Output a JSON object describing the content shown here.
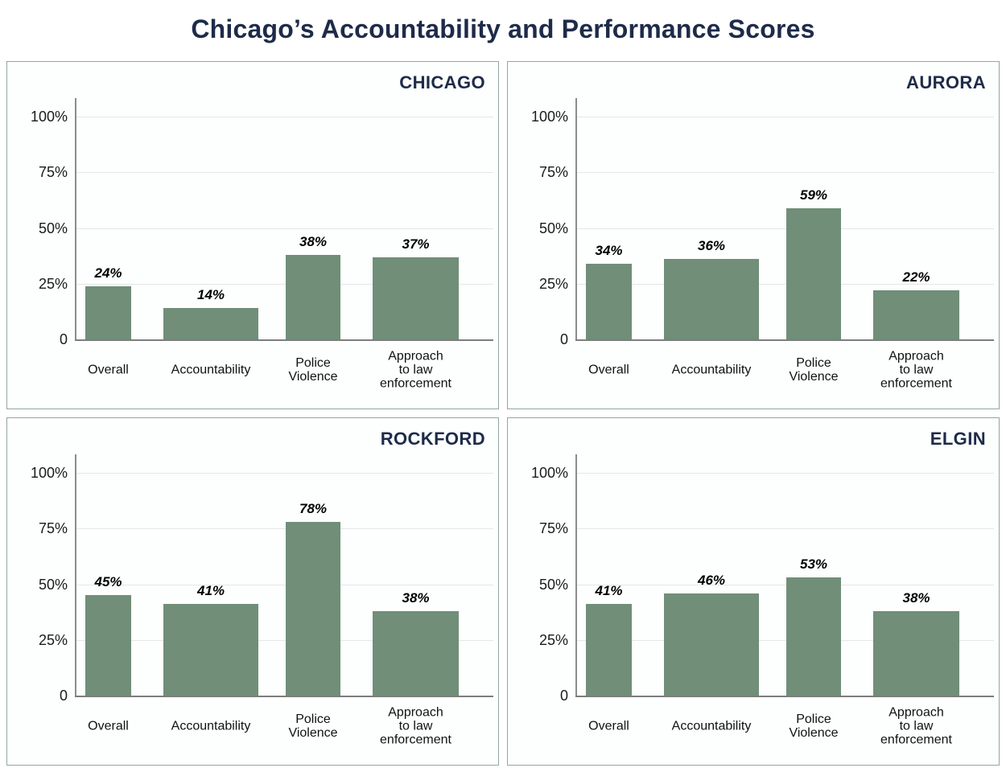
{
  "page": {
    "title": "Chicago’s Accountability and Performance Scores"
  },
  "colors": {
    "title_navy": "#1E2B49",
    "bar_green": "#708E78",
    "panel_border": "#94A6A3",
    "gridline": "#E6E6E6",
    "y_axis_line": "#8C8C8C",
    "x_axis_line": "#7D7D7D",
    "tick_text": "#1B1B1B",
    "category_text": "#111111",
    "value_label_text": "#000000",
    "background": "#FFFFFF"
  },
  "axis": {
    "ylim": [
      0,
      100
    ],
    "grid": true,
    "y_ticks": [
      {
        "value": 100,
        "label": "100%"
      },
      {
        "value": 75,
        "label": "75%"
      },
      {
        "value": 50,
        "label": "50%"
      },
      {
        "value": 25,
        "label": "25%"
      },
      {
        "value": 0,
        "label": "0"
      }
    ]
  },
  "category_lines": [
    [
      "Overall"
    ],
    [
      "Accountability"
    ],
    [
      "Police",
      "Violence"
    ],
    [
      "Approach",
      "to law",
      "enforcement"
    ]
  ],
  "chart_data": [
    {
      "type": "bar",
      "title": "CHICAGO",
      "categories": [
        "Overall",
        "Accountability",
        "Police Violence",
        "Approach to law enforcement"
      ],
      "values": [
        24,
        14,
        38,
        37
      ],
      "labels": [
        "24%",
        "14%",
        "38%",
        "37%"
      ],
      "xlabel": "",
      "ylabel": "",
      "ylim": [
        0,
        100
      ],
      "legend": "none"
    },
    {
      "type": "bar",
      "title": "AURORA",
      "categories": [
        "Overall",
        "Accountability",
        "Police Violence",
        "Approach to law enforcement"
      ],
      "values": [
        34,
        36,
        59,
        22
      ],
      "labels": [
        "34%",
        "36%",
        "59%",
        "22%"
      ],
      "xlabel": "",
      "ylabel": "",
      "ylim": [
        0,
        100
      ],
      "legend": "none"
    },
    {
      "type": "bar",
      "title": "ROCKFORD",
      "categories": [
        "Overall",
        "Accountability",
        "Police Violence",
        "Approach to law enforcement"
      ],
      "values": [
        45,
        41,
        78,
        38
      ],
      "labels": [
        "45%",
        "41%",
        "78%",
        "38%"
      ],
      "xlabel": "",
      "ylabel": "",
      "ylim": [
        0,
        100
      ],
      "legend": "none"
    },
    {
      "type": "bar",
      "title": "ELGIN",
      "categories": [
        "Overall",
        "Accountability",
        "Police Violence",
        "Approach to law enforcement"
      ],
      "values": [
        41,
        46,
        53,
        38
      ],
      "labels": [
        "41%",
        "46%",
        "53%",
        "38%"
      ],
      "xlabel": "",
      "ylabel": "",
      "ylim": [
        0,
        100
      ],
      "legend": "none"
    }
  ]
}
